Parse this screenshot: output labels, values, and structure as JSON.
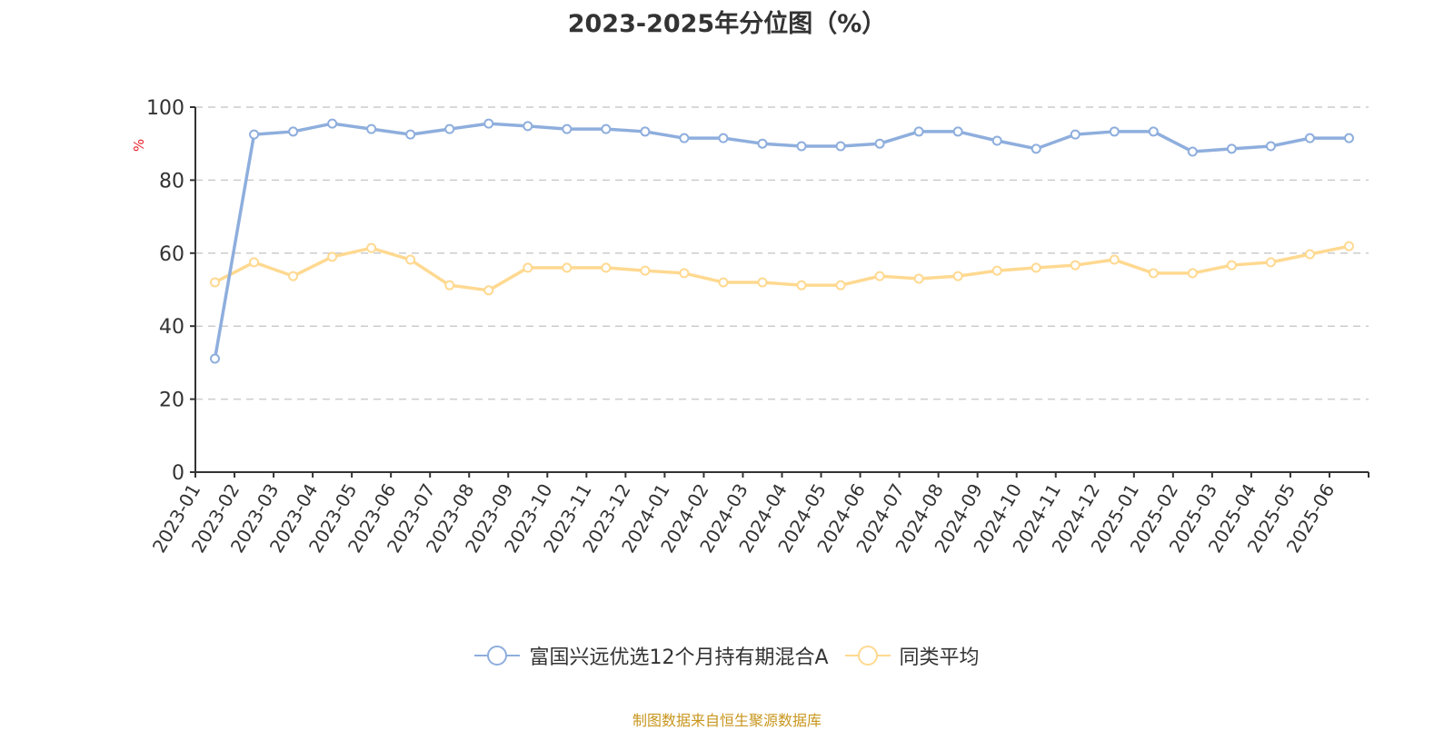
{
  "title": "2023-2025年分位图（%）",
  "y_axis_unit": "%",
  "source_note": "制图数据来自恒生聚源数据库",
  "colors": {
    "fund": "#8eaedd",
    "avg": "#ffd991",
    "axis": "#333333",
    "grid": "#cccccc",
    "unit": "#e8212a",
    "source": "#c8961e"
  },
  "legend": [
    {
      "label": "富国兴远优选12个月持有期混合A",
      "color": "#8eaedd"
    },
    {
      "label": "同类平均",
      "color": "#ffd991"
    }
  ],
  "chart_data": {
    "type": "line",
    "title": "2023-2025年分位图（%）",
    "xlabel": "",
    "ylabel": "%",
    "ylim": [
      0,
      100
    ],
    "yticks": [
      0,
      20,
      40,
      60,
      80,
      100
    ],
    "grid": true,
    "legend_position": "bottom",
    "categories": [
      "2023-01",
      "2023-02",
      "2023-03",
      "2023-04",
      "2023-05",
      "2023-06",
      "2023-07",
      "2023-08",
      "2023-09",
      "2023-10",
      "2023-11",
      "2023-12",
      "2024-01",
      "2024-02",
      "2024-03",
      "2024-04",
      "2024-05",
      "2024-06",
      "2024-07",
      "2024-08",
      "2024-09",
      "2024-10",
      "2024-11",
      "2024-12",
      "2025-01",
      "2025-02",
      "2025-03",
      "2025-04",
      "2025-05",
      "2025-06"
    ],
    "series": [
      {
        "name": "富国兴远优选12个月持有期混合A",
        "values": [
          31.1,
          92.5,
          93.3,
          95.5,
          94.0,
          92.5,
          94.0,
          95.5,
          94.8,
          94.0,
          94.0,
          93.3,
          91.5,
          91.5,
          90.0,
          89.3,
          89.3,
          90.0,
          93.3,
          93.3,
          90.8,
          88.6,
          92.5,
          93.3,
          93.3,
          87.8,
          88.6,
          89.3,
          91.5,
          91.5
        ]
      },
      {
        "name": "同类平均",
        "values": [
          52.0,
          57.5,
          53.7,
          59.0,
          61.4,
          58.2,
          51.2,
          49.8,
          56.0,
          56.0,
          56.0,
          55.2,
          54.5,
          52.0,
          52.0,
          51.2,
          51.2,
          53.7,
          53.0,
          53.7,
          55.2,
          56.0,
          56.7,
          58.2,
          54.5,
          54.5,
          56.7,
          57.5,
          59.7,
          61.9
        ]
      }
    ]
  }
}
